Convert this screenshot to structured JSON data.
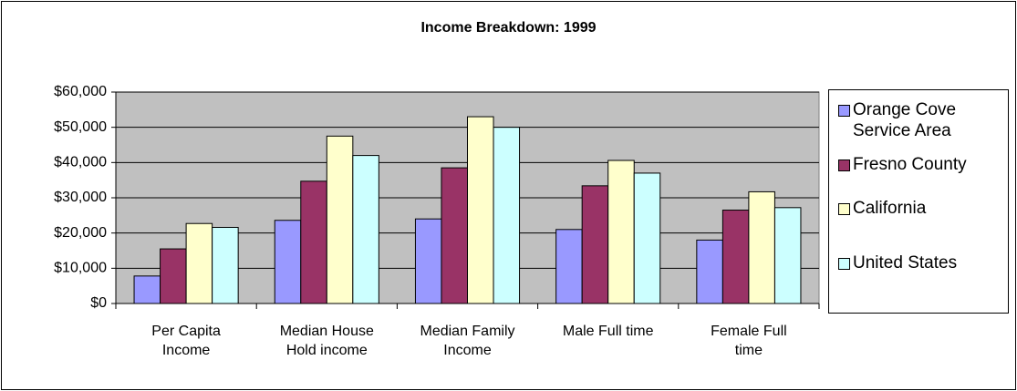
{
  "chart_data": {
    "type": "bar",
    "title": "Income Breakdown: 1999",
    "categories": [
      "Per Capita Income",
      "Median House Hold income",
      "Median Family Income",
      "Male Full time",
      "Female Full time"
    ],
    "series": [
      {
        "name": "Orange Cove Service Area",
        "color": "#9999ff",
        "values": [
          7800,
          23600,
          24000,
          21000,
          18000
        ]
      },
      {
        "name": "Fresno County",
        "color": "#993366",
        "values": [
          15500,
          34700,
          38500,
          33400,
          26500
        ]
      },
      {
        "name": "California",
        "color": "#ffffcc",
        "values": [
          22700,
          47500,
          53000,
          40600,
          31700
        ]
      },
      {
        "name": "United States",
        "color": "#ccffff",
        "values": [
          21600,
          42000,
          50000,
          37000,
          27200
        ]
      }
    ],
    "ylim": [
      0,
      60000
    ],
    "yticks": [
      {
        "value": 0,
        "label": "$0"
      },
      {
        "value": 10000,
        "label": "$10,000"
      },
      {
        "value": 20000,
        "label": "$20,000"
      },
      {
        "value": 30000,
        "label": "$30,000"
      },
      {
        "value": 40000,
        "label": "$40,000"
      },
      {
        "value": 50000,
        "label": "$50,000"
      },
      {
        "value": 60000,
        "label": "$60,000"
      }
    ],
    "grid": true,
    "legend": "right"
  }
}
